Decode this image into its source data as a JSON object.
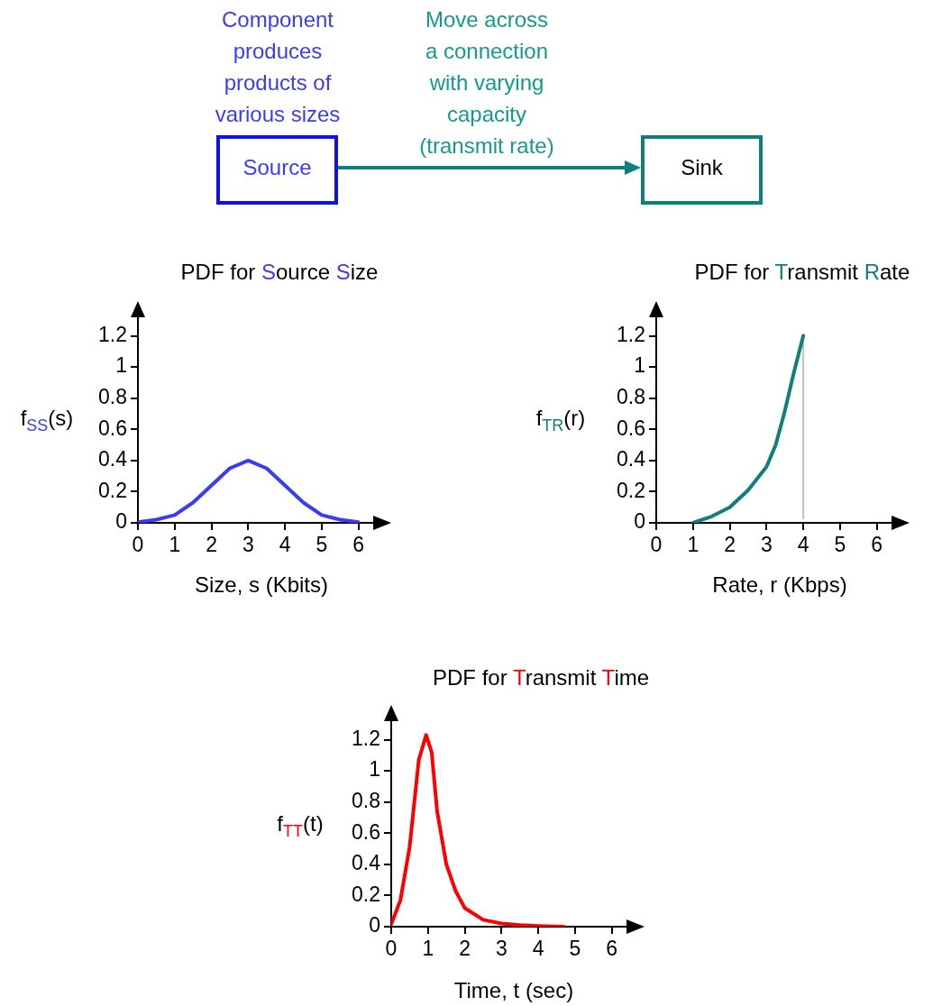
{
  "chart_data": [
    {
      "type": "other",
      "annotations": [
        "Component produces products of various sizes",
        "Move across a connection with varying capacity (transmit rate)",
        "Source",
        "Sink"
      ]
    },
    {
      "type": "line",
      "title": "PDF for Source Size",
      "xlabel": "Size, s (Kbits)",
      "ylabel": "f$_{SS}$(s)",
      "x": [
        0,
        0.5,
        1,
        1.5,
        2,
        2.5,
        3,
        3.5,
        4,
        4.5,
        5,
        5.5,
        6
      ],
      "values": [
        0.004,
        0.02,
        0.05,
        0.13,
        0.24,
        0.35,
        0.4,
        0.35,
        0.24,
        0.13,
        0.05,
        0.02,
        0.004
      ],
      "color": "#3b3bf5",
      "xlim": [
        0,
        6.4
      ],
      "ylim": [
        0,
        1.32
      ],
      "xticks": [
        0,
        1,
        2,
        3,
        4,
        5,
        6
      ],
      "yticks": [
        0,
        0.2,
        0.4,
        0.6,
        0.8,
        1,
        1.2
      ],
      "grid": false
    },
    {
      "type": "line",
      "title": "PDF for Transmit Rate",
      "xlabel": "Rate, r (Kbps)",
      "ylabel": "f$_{TR}$(r)",
      "x": [
        1,
        1.5,
        2,
        2.5,
        3,
        3.25,
        3.5,
        3.75,
        4
      ],
      "values": [
        0,
        0.04,
        0.1,
        0.21,
        0.36,
        0.5,
        0.72,
        0.97,
        1.2
      ],
      "color": "#0f7f7a",
      "xlim": [
        0,
        6.4
      ],
      "ylim": [
        0,
        1.32
      ],
      "xticks": [
        0,
        1,
        2,
        3,
        4,
        5,
        6
      ],
      "yticks": [
        0,
        0.2,
        0.4,
        0.6,
        0.8,
        1,
        1.2
      ],
      "grid": false,
      "ref_lines": [
        {
          "axis": "x",
          "value": 4,
          "color": "#c0c0c0"
        }
      ]
    },
    {
      "type": "line",
      "title": "PDF for Transmit Time",
      "xlabel": "Time, t (sec)",
      "ylabel": "f$_{TT}$(t)",
      "x": [
        0,
        0.25,
        0.5,
        0.75,
        0.95,
        1.1,
        1.25,
        1.5,
        1.75,
        2,
        2.5,
        3,
        3.5,
        4,
        4.7
      ],
      "values": [
        0.015,
        0.17,
        0.51,
        1.07,
        1.23,
        1.12,
        0.74,
        0.4,
        0.23,
        0.12,
        0.044,
        0.02,
        0.01,
        0.005,
        0
      ],
      "color": "#ff0000",
      "xlim": [
        0,
        6.4
      ],
      "ylim": [
        0,
        1.32
      ],
      "xticks": [
        0,
        1,
        2,
        3,
        4,
        5,
        6
      ],
      "yticks": [
        0,
        0.2,
        0.4,
        0.6,
        0.8,
        1,
        1.2
      ],
      "grid": false
    }
  ]
}
